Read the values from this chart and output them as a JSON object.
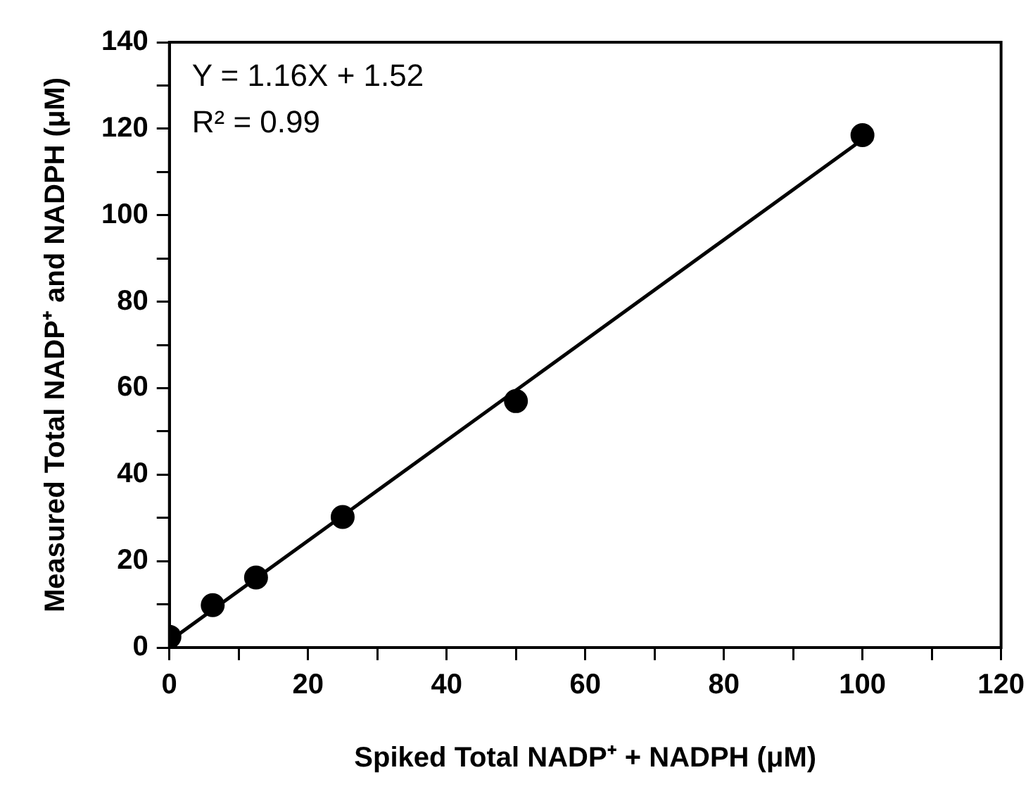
{
  "chart_data": {
    "type": "scatter",
    "xlabel": "Spiked Total NADP⁺ + NADPH (μM)",
    "ylabel": "Measured Total NADP⁺ and NADPH (μM)",
    "x": [
      0,
      6.25,
      12.5,
      25,
      50,
      100
    ],
    "series": [
      {
        "type": "scatter",
        "color": "#000000",
        "values": [
          2.5,
          9.8,
          16.2,
          30.2,
          57,
          118.5
        ]
      },
      {
        "type": "line",
        "color": "#000000",
        "marker": "none",
        "x": [
          0,
          100
        ],
        "values": [
          1.5,
          117.5
        ]
      }
    ],
    "marker": "circle",
    "line_style": "solid",
    "xlim": [
      0,
      120
    ],
    "xticks": [
      0,
      {
        "value": 10,
        "label": null
      },
      20,
      {
        "value": 30,
        "label": null
      },
      40,
      {
        "value": 50,
        "label": null
      },
      60,
      {
        "value": 70,
        "label": null
      },
      80,
      {
        "value": 90,
        "label": null
      },
      100,
      {
        "value": 110,
        "label": null
      },
      120
    ],
    "ylim": [
      0,
      140
    ],
    "yticks": [
      0,
      {
        "value": 10,
        "label": null
      },
      20,
      {
        "value": 30,
        "label": null
      },
      40,
      {
        "value": 50,
        "label": null
      },
      60,
      {
        "value": 70,
        "label": null
      },
      80,
      {
        "value": 90,
        "label": null
      },
      100,
      {
        "value": 110,
        "label": null
      },
      120,
      {
        "value": 130,
        "label": null
      },
      140
    ],
    "annotations": [
      "Y = 1.16X + 1.52",
      "R² = 0.99"
    ],
    "grid": false,
    "legend": false
  }
}
